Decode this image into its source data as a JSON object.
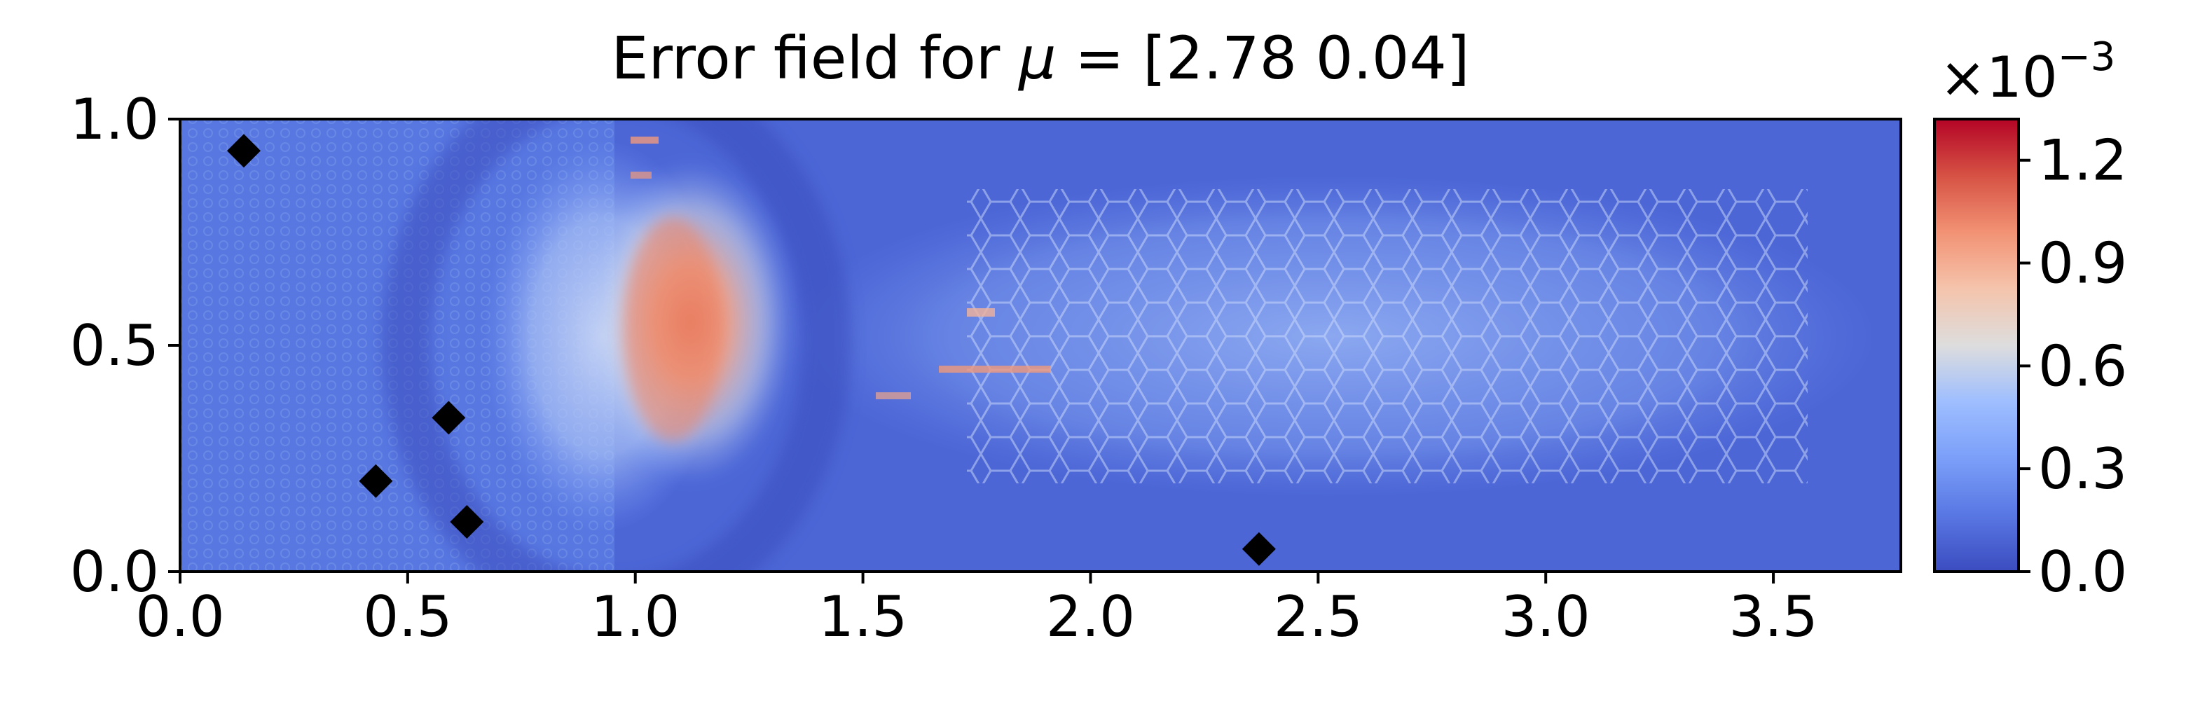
{
  "colors": {
    "axes": "#000000",
    "background": "#ffffff",
    "marker": "#000000",
    "colormap": "coolwarm"
  },
  "chart_data": {
    "type": "heatmap",
    "title_prefix": "Error field for ",
    "title_symbol": "μ",
    "title_suffix": " = [2.78 0.04]",
    "xlim": [
      0.0,
      3.78
    ],
    "ylim": [
      0.0,
      1.0
    ],
    "x_ticks": [
      "0.0",
      "0.5",
      "1.0",
      "1.5",
      "2.0",
      "2.5",
      "3.0",
      "3.5"
    ],
    "y_ticks": [
      "0.0",
      "0.5",
      "1.0"
    ],
    "colorbar": {
      "range": [
        0.0,
        1.32
      ],
      "scale_base": "×10",
      "scale_exponent": "−3",
      "ticks": [
        "0.0",
        "0.3",
        "0.6",
        "0.9",
        "1.2"
      ],
      "tick_values": [
        0.0,
        0.3,
        0.6,
        0.9,
        1.2
      ]
    },
    "field_description": "Error magnitude is low (~0.05–0.2e-3) across most of the domain, with an arc-shaped dark-blue band around x≈0.6–0.9 and a peak region (~0.8–1.3e-3) just right of x≈1.0 near y≈0.3–0.7; a mottled light-blue region spans x≈1.5–3.2.",
    "markers": {
      "shape": "diamond",
      "points": [
        {
          "x": 0.14,
          "y": 0.93
        },
        {
          "x": 0.59,
          "y": 0.34
        },
        {
          "x": 0.43,
          "y": 0.2
        },
        {
          "x": 0.63,
          "y": 0.11
        },
        {
          "x": 2.37,
          "y": 0.05
        }
      ]
    }
  }
}
